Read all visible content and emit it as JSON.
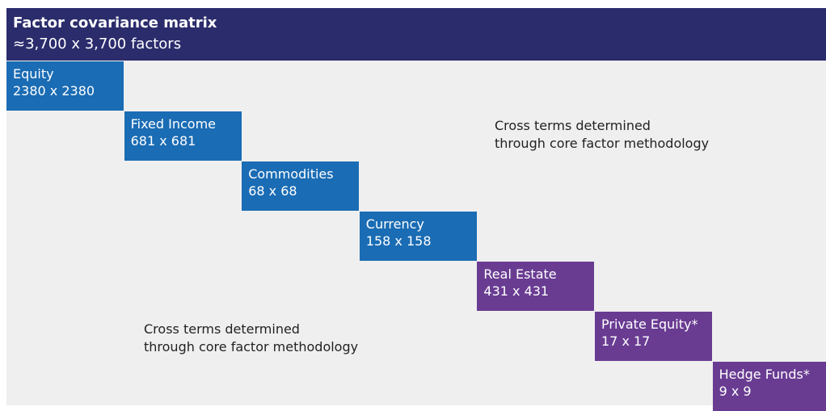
{
  "header": {
    "title": "Factor covariance matrix",
    "subtitle": "≈3,700 x 3,700 factors"
  },
  "blocks": [
    {
      "label": "Equity",
      "size": "2380 x 2380",
      "color": "#1a6cb4"
    },
    {
      "label": "Fixed Income",
      "size": "681 x 681",
      "color": "#1a6cb4"
    },
    {
      "label": "Commodities",
      "size": "68 x 68",
      "color": "#1a6cb4"
    },
    {
      "label": "Currency",
      "size": "158 x 158",
      "color": "#1a6cb4"
    },
    {
      "label": "Real Estate",
      "size": "431 x 431",
      "color": "#693c92"
    },
    {
      "label": "Private Equity*",
      "size": "17 x 17",
      "color": "#693c92"
    },
    {
      "label": "Hedge Funds*",
      "size": "9 x 9",
      "color": "#693c92"
    }
  ],
  "annotations": [
    {
      "lines": [
        "Cross terms determined",
        "through core factor methodology"
      ]
    },
    {
      "lines": [
        "Cross terms determined",
        "through core factor methodology"
      ]
    }
  ]
}
